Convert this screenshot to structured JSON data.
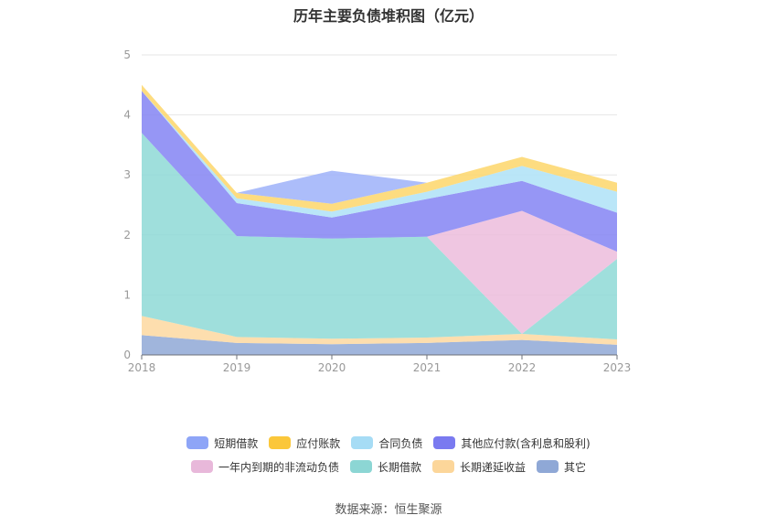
{
  "page": {
    "title": "历年主要负债堆积图（亿元）",
    "source": "数据来源：恒生聚源"
  },
  "chart_data": {
    "type": "area",
    "stacked": true,
    "title": "历年主要负债堆积图（亿元）",
    "categories": [
      "2018",
      "2019",
      "2020",
      "2021",
      "2022",
      "2023"
    ],
    "ylim": [
      0,
      5
    ],
    "yticks": [
      0,
      1,
      2,
      3,
      4,
      5
    ],
    "grid": true,
    "legend_position": "bottom",
    "series": [
      {
        "name": "其它",
        "color": "#8fa8d6",
        "values": [
          0.33,
          0.2,
          0.18,
          0.2,
          0.25,
          0.17
        ]
      },
      {
        "name": "长期递延收益",
        "color": "#fdd8a0",
        "values": [
          0.32,
          0.1,
          0.09,
          0.09,
          0.1,
          0.09
        ]
      },
      {
        "name": "长期借款",
        "color": "#8ed9d6",
        "values": [
          3.05,
          1.68,
          1.67,
          1.68,
          0.0,
          1.34
        ]
      },
      {
        "name": "一年内到期的非流动负债",
        "color": "#ecbcdc",
        "values": [
          0.0,
          0.0,
          0.0,
          0.0,
          2.05,
          0.12
        ]
      },
      {
        "name": "其他应付款(含利息和股利)",
        "color": "#8484f3",
        "values": [
          0.7,
          0.55,
          0.35,
          0.63,
          0.5,
          0.65
        ]
      },
      {
        "name": "合同负债",
        "color": "#aee2f7",
        "values": [
          0.0,
          0.08,
          0.1,
          0.12,
          0.25,
          0.35
        ]
      },
      {
        "name": "应付账款",
        "color": "#fdd66a",
        "values": [
          0.1,
          0.09,
          0.13,
          0.15,
          0.15,
          0.15
        ]
      },
      {
        "name": "短期借款",
        "color": "#9db1f9",
        "values": [
          0.0,
          0.0,
          0.55,
          0.0,
          0.0,
          0.0
        ]
      }
    ],
    "legend_order": [
      "短期借款",
      "应付账款",
      "合同负债",
      "其他应付款(含利息和股利)",
      "一年内到期的非流动负债",
      "长期借款",
      "长期递延收益",
      "其它"
    ],
    "legend_rows": [
      [
        {
          "name": "短期借款",
          "color": "#8ea5f7"
        },
        {
          "name": "应付账款",
          "color": "#fbc73a"
        },
        {
          "name": "合同负债",
          "color": "#a6dcf5"
        },
        {
          "name": "其他应付款(含利息和股利)",
          "color": "#7a7af0"
        }
      ],
      [
        {
          "name": "一年内到期的非流动负债",
          "color": "#e8b8da"
        },
        {
          "name": "长期借款",
          "color": "#8cd6d4"
        },
        {
          "name": "长期递延收益",
          "color": "#fcd69a"
        },
        {
          "name": "其它",
          "color": "#8fa8d6"
        }
      ]
    ]
  }
}
